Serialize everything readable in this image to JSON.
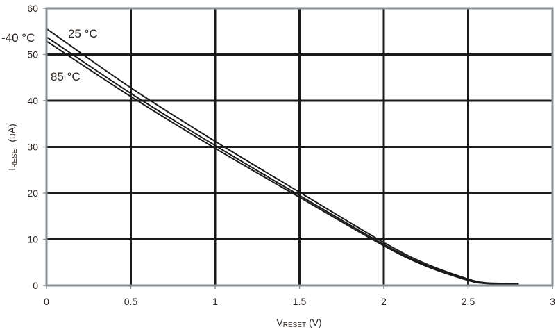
{
  "chart_data": {
    "type": "line",
    "title": "",
    "xlabel": {
      "main": "V",
      "sub": "RESET",
      "unit": " (V)"
    },
    "ylabel": {
      "main": "I",
      "sub": "RESET",
      "unit": " (uA)"
    },
    "xlim": [
      0,
      3
    ],
    "ylim": [
      0,
      60
    ],
    "xticks": [
      "0",
      "0.5",
      "1",
      "1.5",
      "2",
      "2.5",
      "3"
    ],
    "yticks": [
      "0",
      "10",
      "20",
      "30",
      "40",
      "50",
      "60"
    ],
    "grid": true,
    "annotations": [
      "25 °C",
      "-40 °C",
      "85 °C"
    ],
    "series": [
      {
        "name": "25 °C",
        "x": [
          0,
          0.5,
          1,
          1.5,
          2,
          2.25,
          2.5,
          2.6,
          2.7,
          2.8
        ],
        "y": [
          55.6,
          42.8,
          31.2,
          20.2,
          9.3,
          4.7,
          1.4,
          0.6,
          0.45,
          0.4
        ]
      },
      {
        "name": "-40 °C",
        "x": [
          0,
          0.5,
          1,
          1.5,
          2,
          2.25,
          2.5,
          2.6,
          2.7,
          2.8
        ],
        "y": [
          53.8,
          41.6,
          30.3,
          19.5,
          8.9,
          4.4,
          1.2,
          0.5,
          0.4,
          0.4
        ]
      },
      {
        "name": "85 °C",
        "x": [
          0,
          0.5,
          1,
          1.5,
          2,
          2.25,
          2.5,
          2.6,
          2.7,
          2.8
        ],
        "y": [
          52.9,
          40.9,
          29.7,
          19.1,
          8.6,
          4.2,
          1.1,
          0.45,
          0.35,
          0.35
        ]
      }
    ],
    "colors": {
      "line": "#1a1a1a",
      "grid": "#1a1a1a",
      "frame": "#8a8f93"
    }
  }
}
